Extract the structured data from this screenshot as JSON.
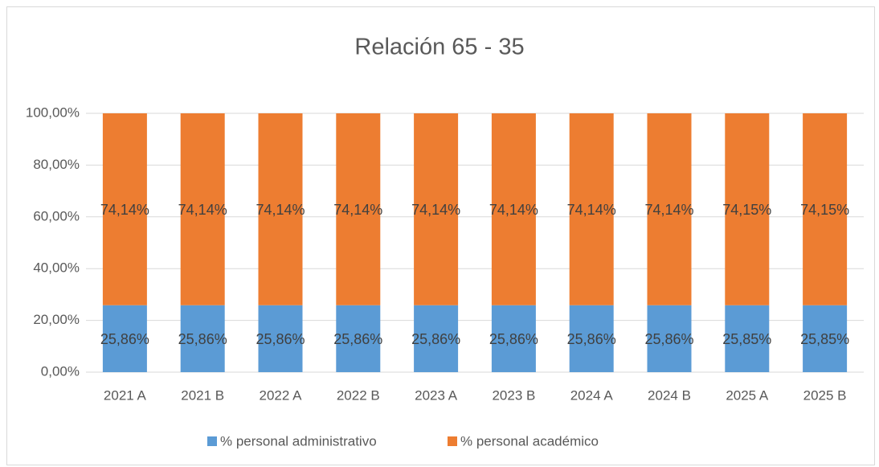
{
  "chart_data": {
    "type": "bar",
    "stacked": true,
    "title": "Relación 65 - 35",
    "categories": [
      "2021 A",
      "2021 B",
      "2022 A",
      "2022 B",
      "2023 A",
      "2023 B",
      "2024 A",
      "2024 B",
      "2025 A",
      "2025 B"
    ],
    "series": [
      {
        "name": "% personal administrativo",
        "color": "#5b9bd5",
        "values": [
          25.86,
          25.86,
          25.86,
          25.86,
          25.86,
          25.86,
          25.86,
          25.86,
          25.85,
          25.85
        ],
        "value_labels": [
          "25,86%",
          "25,86%",
          "25,86%",
          "25,86%",
          "25,86%",
          "25,86%",
          "25,86%",
          "25,86%",
          "25,85%",
          "25,85%"
        ]
      },
      {
        "name": "% personal académico",
        "color": "#ed7d31",
        "values": [
          74.14,
          74.14,
          74.14,
          74.14,
          74.14,
          74.14,
          74.14,
          74.14,
          74.15,
          74.15
        ],
        "value_labels": [
          "74,14%",
          "74,14%",
          "74,14%",
          "74,14%",
          "74,14%",
          "74,14%",
          "74,14%",
          "74,14%",
          "74,15%",
          "74,15%"
        ]
      }
    ],
    "ylim": [
      0,
      100
    ],
    "yticks": [
      {
        "value": 0,
        "label": "0,00%"
      },
      {
        "value": 20,
        "label": "20,00%"
      },
      {
        "value": 40,
        "label": "40,00%"
      },
      {
        "value": 60,
        "label": "60,00%"
      },
      {
        "value": 80,
        "label": "80,00%"
      },
      {
        "value": 100,
        "label": "100,00%"
      }
    ],
    "grid": true,
    "legend": "bottom"
  }
}
